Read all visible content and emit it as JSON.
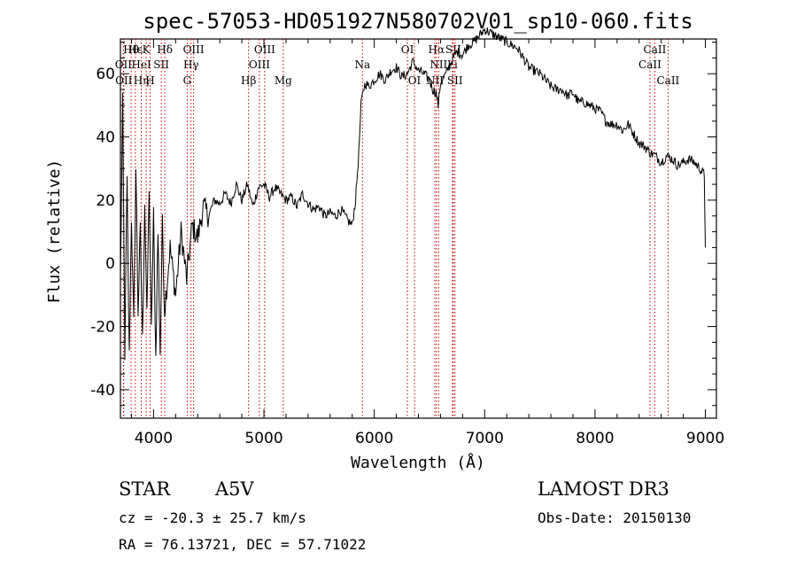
{
  "chart_data": {
    "type": "line",
    "title": "spec-57053-HD051927N580702V01_sp10-060.fits",
    "xlabel": "Wavelength (Å)",
    "ylabel": "Flux (relative)",
    "xlim": [
      3700,
      9100
    ],
    "ylim": [
      -49,
      71
    ],
    "xticks": [
      4000,
      5000,
      6000,
      7000,
      8000,
      9000
    ],
    "yticks": [
      -40,
      -20,
      0,
      20,
      40,
      60
    ],
    "grid": false,
    "series": [
      {
        "name": "flux",
        "x": [
          3700,
          3720,
          3740,
          3760,
          3780,
          3800,
          3820,
          3840,
          3860,
          3880,
          3900,
          3920,
          3940,
          3960,
          3980,
          4000,
          4020,
          4040,
          4060,
          4080,
          4100,
          4150,
          4200,
          4250,
          4300,
          4350,
          4400,
          4450,
          4500,
          4550,
          4600,
          4650,
          4700,
          4750,
          4800,
          4850,
          4900,
          4950,
          5000,
          5050,
          5100,
          5150,
          5200,
          5250,
          5300,
          5350,
          5400,
          5450,
          5500,
          5550,
          5600,
          5650,
          5700,
          5750,
          5800,
          5830,
          5860,
          5880,
          5900,
          5920,
          5950,
          6000,
          6050,
          6100,
          6150,
          6200,
          6250,
          6300,
          6350,
          6400,
          6450,
          6500,
          6530,
          6560,
          6580,
          6600,
          6650,
          6700,
          6750,
          6800,
          6850,
          6900,
          6950,
          7000,
          7050,
          7100,
          7150,
          7200,
          7250,
          7300,
          7350,
          7400,
          7450,
          7500,
          7550,
          7600,
          7650,
          7700,
          7750,
          7800,
          7850,
          7900,
          7950,
          8000,
          8050,
          8100,
          8150,
          8200,
          8250,
          8300,
          8350,
          8400,
          8450,
          8500,
          8550,
          8600,
          8650,
          8700,
          8750,
          8800,
          8850,
          8900,
          8950,
          8990,
          9000
        ],
        "values": [
          -5,
          50,
          -28,
          25,
          -30,
          15,
          -20,
          30,
          -15,
          10,
          -25,
          20,
          -18,
          25,
          -22,
          15,
          -30,
          10,
          -28,
          12,
          -15,
          5,
          -10,
          10,
          -5,
          12,
          8,
          18,
          15,
          20,
          19,
          22,
          19,
          25,
          20,
          25,
          18,
          24,
          25,
          21,
          24,
          22,
          20,
          21,
          18,
          22,
          19,
          17,
          18,
          15,
          16,
          15,
          17,
          14,
          12,
          20,
          35,
          50,
          55,
          57,
          56,
          58,
          60,
          58,
          61,
          62,
          59,
          60,
          64,
          61,
          60,
          58,
          55,
          54,
          50,
          57,
          60,
          64,
          67,
          66,
          69,
          70,
          72,
          74,
          73,
          72,
          71,
          70,
          69,
          68,
          65,
          62,
          61,
          60,
          58,
          56,
          55,
          55,
          53,
          54,
          51,
          51,
          50,
          49,
          48,
          45,
          44,
          44,
          42,
          44,
          41,
          38,
          37,
          35,
          34,
          32,
          34,
          33,
          31,
          32,
          33,
          32,
          30,
          28,
          5
        ]
      }
    ],
    "line_markers": [
      {
        "label": "Hθ",
        "wavelength": 3797,
        "row": 1
      },
      {
        "label": "OII",
        "wavelength": 3727,
        "row": 2
      },
      {
        "label": "OII",
        "wavelength": 3730,
        "row": 3
      },
      {
        "label": "Hε",
        "wavelength": 3835,
        "row": 1
      },
      {
        "label": "HeI",
        "wavelength": 3889,
        "row": 2
      },
      {
        "label": "Hη",
        "wavelength": 3889,
        "row": 3
      },
      {
        "label": "K",
        "wavelength": 3934,
        "row": 1
      },
      {
        "label": "SII",
        "wavelength": 4070,
        "row": 2
      },
      {
        "label": "H",
        "wavelength": 3969,
        "row": 3
      },
      {
        "label": "Hδ",
        "wavelength": 4102,
        "row": 1
      },
      {
        "label": "OIII",
        "wavelength": 4363,
        "row": 1
      },
      {
        "label": "Hγ",
        "wavelength": 4340,
        "row": 2
      },
      {
        "label": "G",
        "wavelength": 4305,
        "row": 3
      },
      {
        "label": "OIII",
        "wavelength": 5007,
        "row": 1
      },
      {
        "label": "OIII",
        "wavelength": 4959,
        "row": 2
      },
      {
        "label": "Hβ",
        "wavelength": 4861,
        "row": 3
      },
      {
        "label": "Mg",
        "wavelength": 5175,
        "row": 3
      },
      {
        "label": "Na",
        "wavelength": 5893,
        "row": 2
      },
      {
        "label": "OI",
        "wavelength": 6300,
        "row": 1
      },
      {
        "label": "OI",
        "wavelength": 6364,
        "row": 3
      },
      {
        "label": "Hα",
        "wavelength": 6563,
        "row": 1
      },
      {
        "label": "NII",
        "wavelength": 6583,
        "row": 2
      },
      {
        "label": "NII",
        "wavelength": 6548,
        "row": 3
      },
      {
        "label": "SII",
        "wavelength": 6716,
        "row": 1
      },
      {
        "label": "Li",
        "wavelength": 6708,
        "row": 2
      },
      {
        "label": "SII",
        "wavelength": 6731,
        "row": 3
      },
      {
        "label": "CaII",
        "wavelength": 8542,
        "row": 1
      },
      {
        "label": "CaII",
        "wavelength": 8498,
        "row": 2
      },
      {
        "label": "CaII",
        "wavelength": 8662,
        "row": 3
      }
    ]
  },
  "info": {
    "object_class": "STAR",
    "subclass": "A5V",
    "survey": "LAMOST DR3",
    "redshift": "cz = -20.3 ± 25.7 km/s",
    "obs_date": "Obs-Date: 20150130",
    "coords": "RA =  76.13721, DEC =  57.71022"
  }
}
